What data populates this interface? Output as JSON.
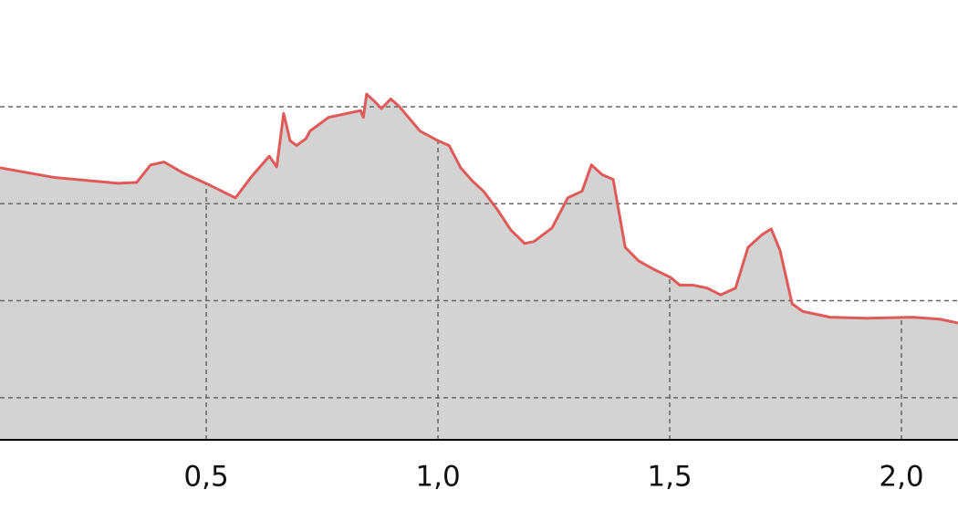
{
  "chart_data": {
    "type": "area",
    "x": [
      0.055,
      0.173,
      0.311,
      0.35,
      0.38,
      0.409,
      0.449,
      0.508,
      0.563,
      0.596,
      0.636,
      0.652,
      0.667,
      0.681,
      0.695,
      0.715,
      0.724,
      0.764,
      0.813,
      0.833,
      0.839,
      0.846,
      0.862,
      0.878,
      0.898,
      0.917,
      0.961,
      1.0,
      1.024,
      1.049,
      1.075,
      1.098,
      1.128,
      1.157,
      1.187,
      1.207,
      1.246,
      1.28,
      1.311,
      1.331,
      1.354,
      1.378,
      1.404,
      1.433,
      1.463,
      1.502,
      1.522,
      1.551,
      1.581,
      1.61,
      1.642,
      1.669,
      1.699,
      1.719,
      1.738,
      1.764,
      1.787,
      1.846,
      1.925,
      2.024,
      2.083,
      2.122
    ],
    "values": [
      3.37,
      3.27,
      3.21,
      3.22,
      3.4,
      3.43,
      3.32,
      3.19,
      3.06,
      3.27,
      3.49,
      3.38,
      3.93,
      3.65,
      3.6,
      3.67,
      3.75,
      3.89,
      3.94,
      3.96,
      3.89,
      4.13,
      4.06,
      3.98,
      4.08,
      4.0,
      3.75,
      3.65,
      3.6,
      3.37,
      3.23,
      3.13,
      2.94,
      2.73,
      2.59,
      2.61,
      2.75,
      3.06,
      3.13,
      3.4,
      3.3,
      3.25,
      2.55,
      2.41,
      2.33,
      2.24,
      2.16,
      2.16,
      2.13,
      2.06,
      2.13,
      2.55,
      2.68,
      2.74,
      2.52,
      1.97,
      1.89,
      1.83,
      1.82,
      1.83,
      1.81,
      1.77
    ],
    "color": "#e05a5a",
    "fill": "#d3d3d3",
    "xlim": [
      0.055,
      2.122
    ],
    "ylim": [
      0.566,
      5.1
    ],
    "xticks": [
      {
        "value": 0.5,
        "label": "0,5"
      },
      {
        "value": 1.0,
        "label": "1,0"
      },
      {
        "value": 1.5,
        "label": "1,5"
      },
      {
        "value": 2.0,
        "label": "2,0"
      }
    ],
    "yticks": [
      1,
      2,
      3,
      4
    ],
    "grid": true
  }
}
